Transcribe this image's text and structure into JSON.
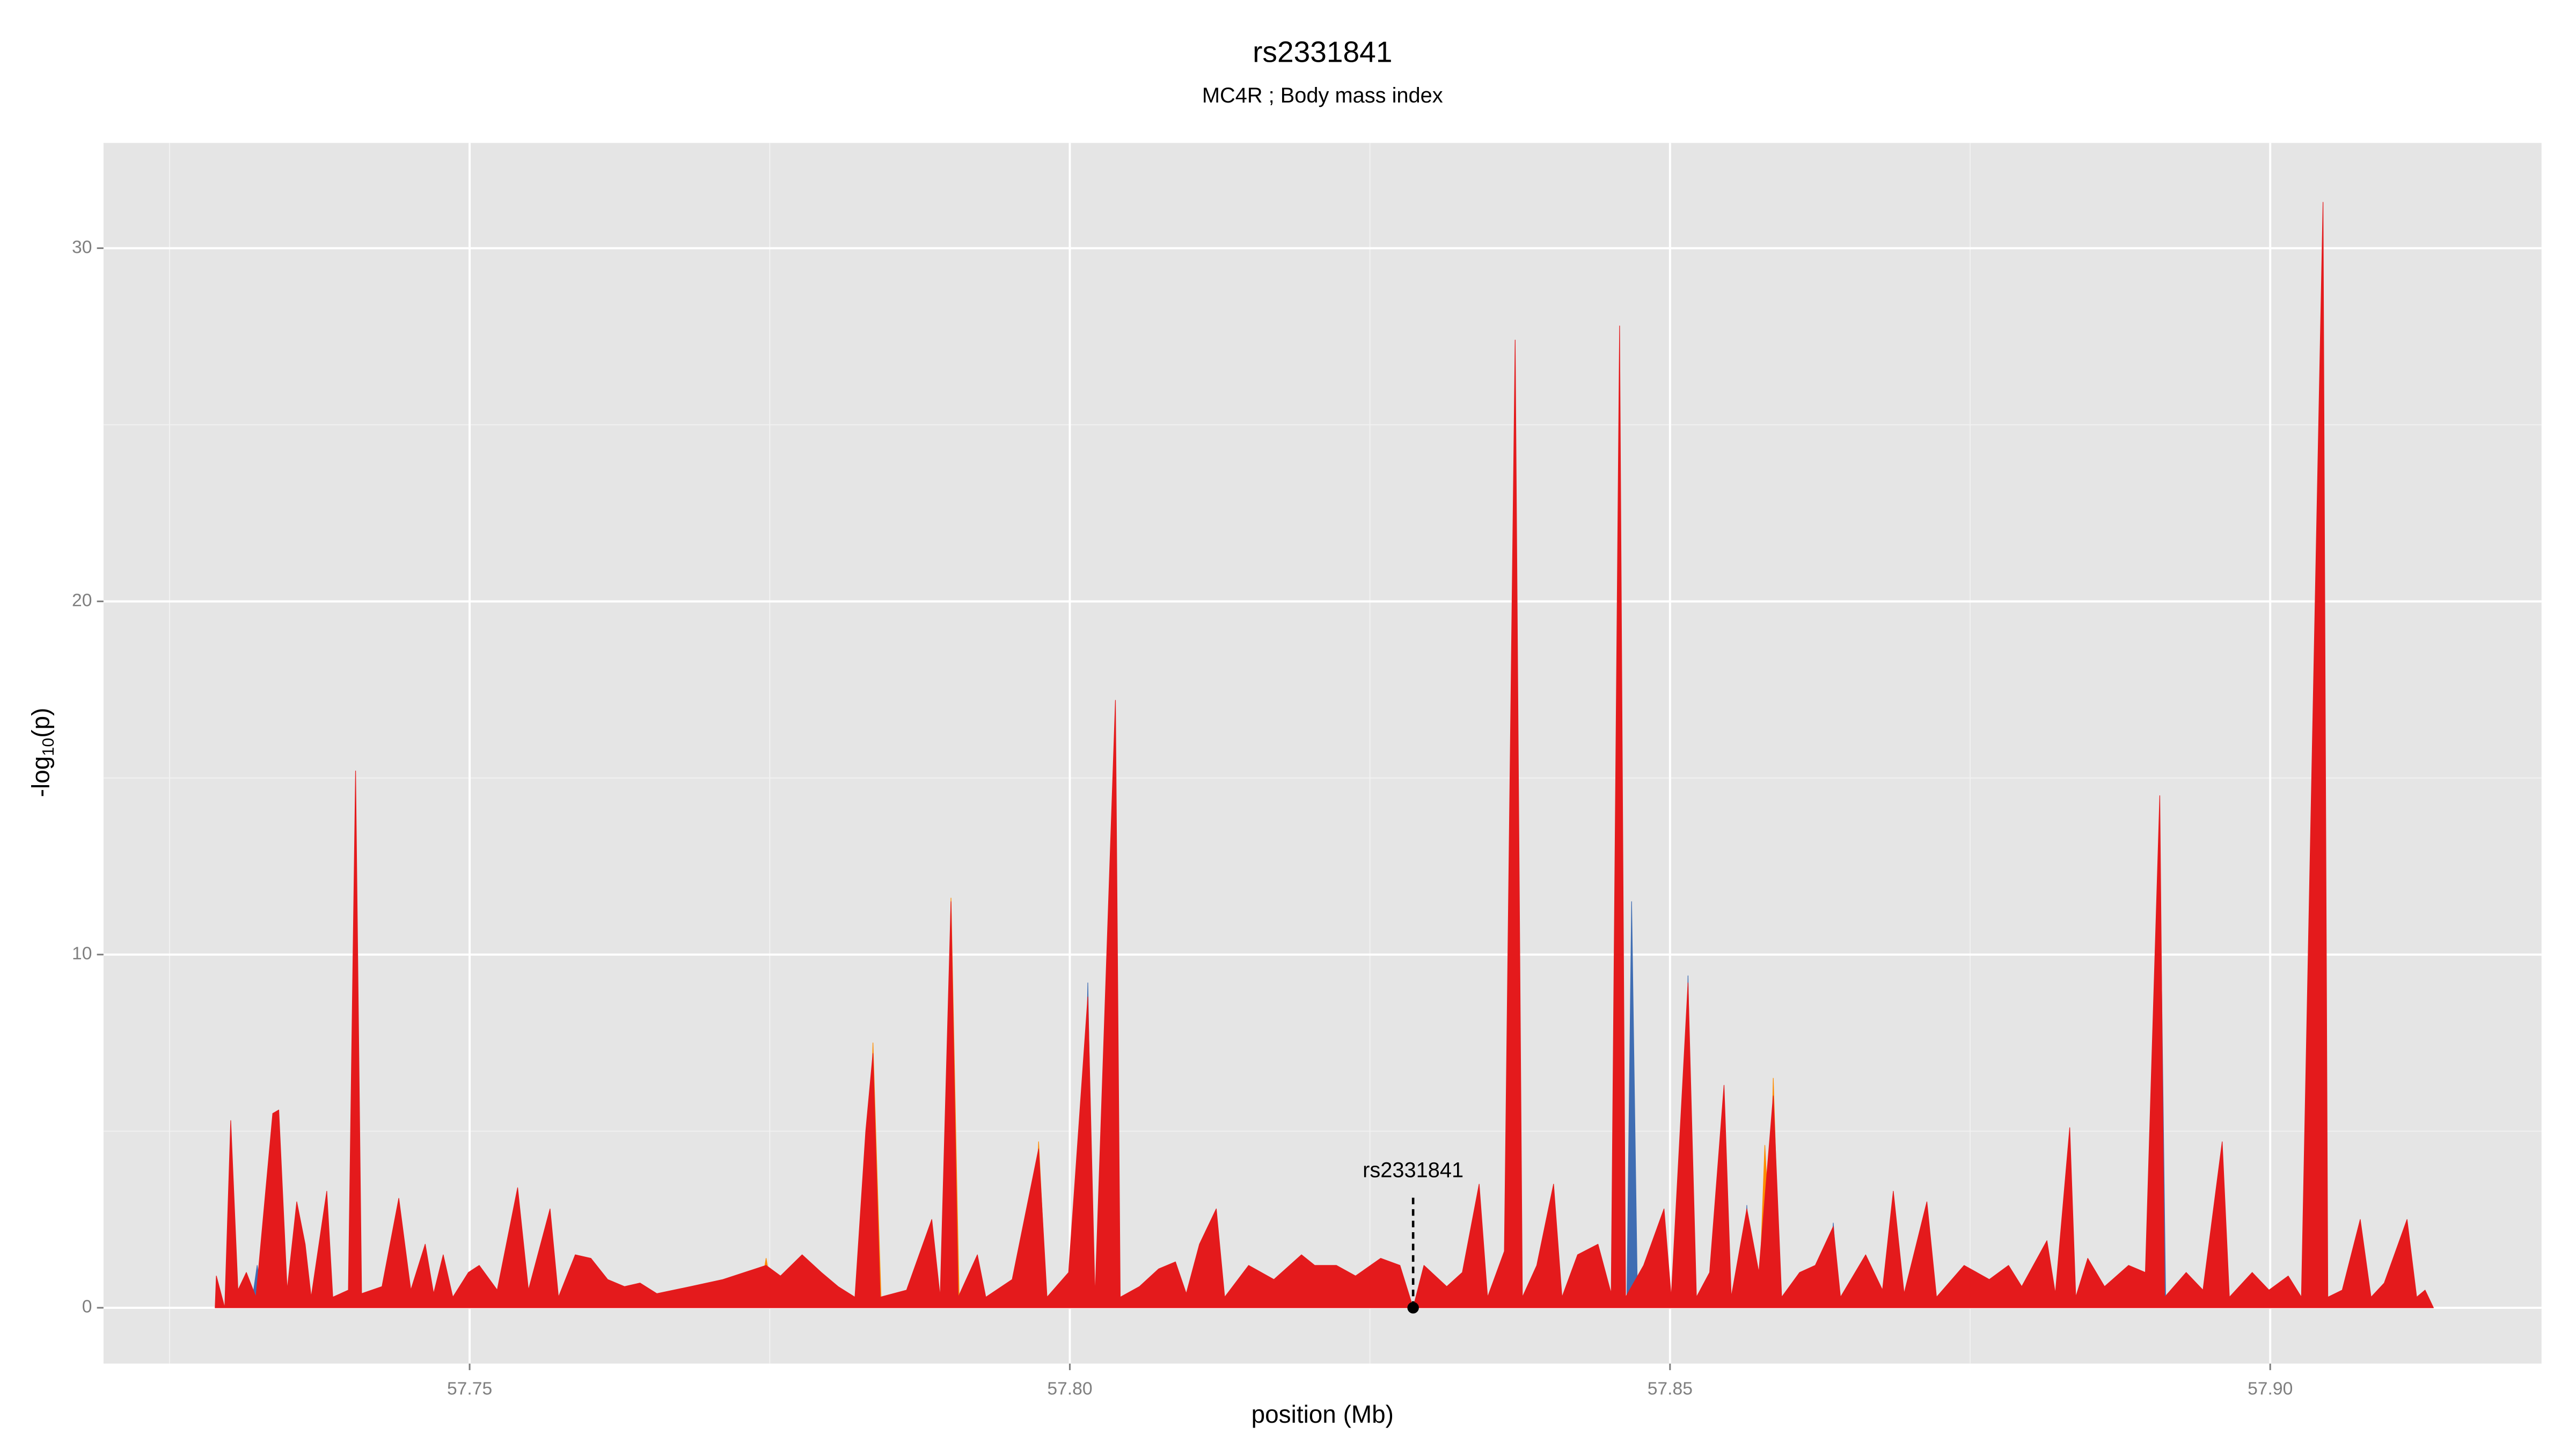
{
  "chart_data": {
    "type": "area",
    "title": "rs2331841",
    "subtitle": "MC4R ; Body mass index",
    "xlabel": "position (Mb)",
    "ylabel": {
      "prefix": "-log",
      "sub": "10",
      "suffix": "(p)"
    },
    "xlim": [
      57.7195,
      57.9226
    ],
    "ylim": [
      -1.58,
      32.98
    ],
    "xticks": [
      57.75,
      {
        "value": 57.8,
        "label": "57.80"
      },
      57.85,
      {
        "value": 57.9,
        "label": "57.90"
      }
    ],
    "yticks": [
      0,
      10,
      20,
      30
    ],
    "x_minor_ticks": [
      57.725,
      57.775,
      57.825,
      57.875
    ],
    "y_minor_ticks": [
      5,
      15,
      25
    ],
    "grid": true,
    "annotation": {
      "text": "rs2331841",
      "x": 57.8286,
      "y": 0
    },
    "series": [
      {
        "color": "#3f6db3",
        "x": [
          57.7318,
          57.7323,
          57.7328,
          57.801,
          57.8015,
          57.802,
          57.8464,
          57.8468,
          57.8473,
          57.851,
          57.8515,
          57.852,
          57.856,
          57.8564,
          57.8568,
          57.8631,
          57.8636,
          57.8641,
          57.8903,
          57.8908,
          57.8913,
          57.9029,
          57.9033,
          57.9037
        ],
        "values": [
          0,
          1.2,
          0,
          0,
          9.2,
          0,
          0,
          11.5,
          0,
          0,
          9.4,
          0,
          0,
          2.9,
          0,
          0,
          2.4,
          0,
          0,
          13,
          0,
          0,
          1,
          0
        ]
      },
      {
        "color": "#ff8c00",
        "x": [
          57.733,
          57.7336,
          57.7342,
          57.774,
          57.7747,
          57.7754,
          57.783,
          57.7836,
          57.7843,
          57.7895,
          57.7901,
          57.7908,
          57.7968,
          57.7974,
          57.7981,
          57.8397,
          57.8403,
          57.8409,
          57.8574,
          57.8579,
          57.8583,
          57.8586,
          57.8592
        ],
        "values": [
          0,
          5.5,
          0,
          0,
          1.4,
          0,
          0,
          7.5,
          0,
          0,
          11.6,
          0,
          0,
          4.7,
          0,
          0,
          3.5,
          0,
          0,
          4.6,
          2,
          6.5,
          0
        ]
      },
      {
        "color": "#e41a1c",
        "x": [
          57.7288,
          57.7289,
          57.7296,
          57.7301,
          57.7307,
          57.7314,
          57.7322,
          57.7336,
          57.7341,
          57.7348,
          57.7356,
          57.7363,
          57.7368,
          57.7381,
          57.7386,
          57.7399,
          57.7405,
          57.741,
          57.7427,
          57.7441,
          57.7451,
          57.7463,
          57.747,
          57.7478,
          57.7486,
          57.7499,
          57.7508,
          57.7523,
          57.754,
          57.7549,
          57.7567,
          57.7574,
          57.7588,
          57.7601,
          57.7615,
          57.7629,
          57.7642,
          57.7656,
          57.7684,
          57.7711,
          57.7747,
          57.7759,
          57.7777,
          57.7793,
          57.7807,
          57.7821,
          57.783,
          57.7836,
          57.7842,
          57.7864,
          57.7885,
          57.7892,
          57.7901,
          57.7907,
          57.7923,
          57.793,
          57.7952,
          57.7974,
          57.7981,
          57.7999,
          57.8015,
          57.8021,
          57.8038,
          57.8042,
          57.8058,
          57.8074,
          57.8088,
          57.8097,
          57.8108,
          57.8122,
          57.8129,
          57.8149,
          57.817,
          57.8193,
          57.8204,
          57.8222,
          57.8238,
          57.8259,
          57.8275,
          57.8286,
          57.8295,
          57.8314,
          57.8327,
          57.8341,
          57.8348,
          57.8362,
          57.8371,
          57.8377,
          57.8389,
          57.8403,
          57.841,
          57.8423,
          57.844,
          57.8451,
          57.8458,
          57.8463,
          57.8478,
          57.8495,
          57.8501,
          57.8515,
          57.8522,
          57.8533,
          57.8545,
          57.8551,
          57.8564,
          57.8574,
          57.8586,
          57.8593,
          57.8608,
          57.8621,
          57.8636,
          57.8642,
          57.8663,
          57.8677,
          57.8686,
          57.8695,
          57.8714,
          57.8722,
          57.8745,
          57.8766,
          57.8782,
          57.8793,
          57.8814,
          57.8821,
          57.8833,
          57.8838,
          57.8848,
          57.8862,
          57.8882,
          57.8896,
          57.8908,
          57.8912,
          57.893,
          57.8944,
          57.896,
          57.8966,
          57.8985,
          57.8999,
          57.9015,
          57.9026,
          57.9044,
          57.9048,
          57.906,
          57.9075,
          57.9084,
          57.9095,
          57.9114,
          57.9122,
          57.9129,
          57.9136
        ],
        "values": [
          0,
          0.9,
          0,
          5.3,
          0.5,
          1,
          0.3,
          5.5,
          5.6,
          0.5,
          3,
          1.8,
          0.3,
          3.3,
          0.3,
          0.5,
          15.2,
          0.4,
          0.6,
          3.1,
          0.5,
          1.8,
          0.4,
          1.5,
          0.3,
          1,
          1.2,
          0.5,
          3.4,
          0.5,
          2.8,
          0.3,
          1.5,
          1.4,
          0.8,
          0.6,
          0.7,
          0.4,
          0.6,
          0.8,
          1.2,
          0.9,
          1.5,
          1,
          0.6,
          0.3,
          5,
          7.2,
          0.3,
          0.5,
          2.5,
          0.3,
          11.5,
          0.3,
          1.5,
          0.3,
          0.8,
          4.5,
          0.3,
          1,
          8.8,
          0.3,
          17.2,
          0.3,
          0.6,
          1.1,
          1.3,
          0.4,
          1.8,
          2.8,
          0.3,
          1.2,
          0.8,
          1.5,
          1.2,
          1.2,
          0.9,
          1.4,
          1.2,
          0,
          1.2,
          0.6,
          1,
          3.5,
          0.3,
          1.6,
          27.4,
          0.3,
          1.2,
          3.5,
          0.3,
          1.5,
          1.8,
          0.4,
          27.8,
          0.3,
          1.2,
          2.8,
          0.3,
          9.2,
          0.3,
          1,
          6.3,
          0.3,
          2.8,
          1,
          6,
          0.3,
          1,
          1.2,
          2.3,
          0.3,
          1.5,
          0.5,
          3.3,
          0.4,
          3,
          0.3,
          1.2,
          0.8,
          1.2,
          0.6,
          1.9,
          0.4,
          5.1,
          0.3,
          1.4,
          0.6,
          1.2,
          1,
          14.5,
          0.3,
          1,
          0.5,
          4.7,
          0.3,
          1,
          0.5,
          0.9,
          0.3,
          31.3,
          0.3,
          0.5,
          2.5,
          0.3,
          0.7,
          2.5,
          0.3,
          0.5,
          0
        ]
      }
    ]
  }
}
